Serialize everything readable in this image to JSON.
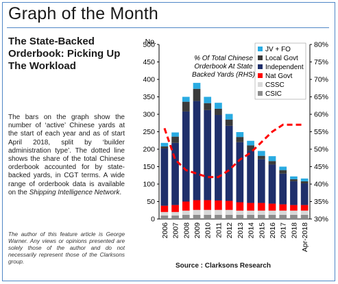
{
  "header": {
    "title": "Graph of the Month"
  },
  "article": {
    "heading": "The State-Backed Orderbook: Picking Up The Workload",
    "body_before_link": "The bars on the graph show the number of ‘active’ Chinese yards at the start of each year and as of start April 2018, split by ‘builder administration type’. The dotted line shows the share of the total Chinese orderbook accounted for by state-backed yards, in CGT terms. A wide range of orderbook data is available on the",
    "link_text": "Shipping Intelligence Network",
    "body_after_link": ".",
    "author_note": "The author of this feature article is George Warner. Any views or opinions presented are solely those of the author and do not necessarily represent those of the Clarksons group."
  },
  "source": "Source : Clarksons Research",
  "chart_data": {
    "type": "bar",
    "stacked": true,
    "categories": [
      "2006",
      "2007",
      "2008",
      "2009",
      "2010",
      "2011",
      "2012",
      "2013",
      "2014",
      "2015",
      "2016",
      "2017",
      "2018",
      "Apr-2018"
    ],
    "ylabel": "No.",
    "ylim": [
      0,
      500
    ],
    "yticks": [
      "0",
      "50",
      "100",
      "150",
      "200",
      "250",
      "300",
      "350",
      "400",
      "450",
      "500"
    ],
    "y2lim": [
      30,
      80
    ],
    "y2ticks": [
      "30%",
      "35%",
      "40%",
      "45%",
      "50%",
      "55%",
      "60%",
      "65%",
      "70%",
      "75%",
      "80%"
    ],
    "legend_position": "top-right",
    "series": [
      {
        "name": "CSIC",
        "color": "#8c8c8c",
        "values": [
          10,
          10,
          12,
          12,
          12,
          12,
          12,
          12,
          12,
          12,
          12,
          12,
          12,
          12
        ]
      },
      {
        "name": "CSSC",
        "color": "#d9d9d9",
        "values": [
          10,
          10,
          12,
          14,
          14,
          14,
          14,
          12,
          12,
          12,
          12,
          12,
          12,
          12
        ]
      },
      {
        "name": "Nat Govt",
        "color": "#ff0000",
        "values": [
          18,
          20,
          26,
          28,
          28,
          27,
          26,
          24,
          22,
          22,
          20,
          18,
          16,
          16
        ]
      },
      {
        "name": "Independent",
        "color": "#1f2f6b",
        "values": [
          164,
          178,
          258,
          284,
          258,
          245,
          215,
          172,
          150,
          125,
          112,
          88,
          68,
          62
        ]
      },
      {
        "name": "Local Govt",
        "color": "#3b3b3b",
        "values": [
          6,
          18,
          28,
          35,
          20,
          18,
          18,
          15,
          15,
          10,
          10,
          10,
          6,
          6
        ]
      },
      {
        "name": "JV + FO",
        "color": "#29abe2",
        "values": [
          10,
          12,
          14,
          17,
          18,
          17,
          16,
          14,
          13,
          14,
          14,
          10,
          8,
          8
        ]
      }
    ],
    "line": {
      "name": "% Of Total Chinese Orderbook At State Backed Yards (RHS)",
      "axis": "right",
      "color": "#ff0000",
      "values": [
        56,
        47,
        44,
        43,
        42,
        42,
        44,
        47,
        49,
        52,
        55,
        57,
        57,
        57
      ]
    }
  }
}
